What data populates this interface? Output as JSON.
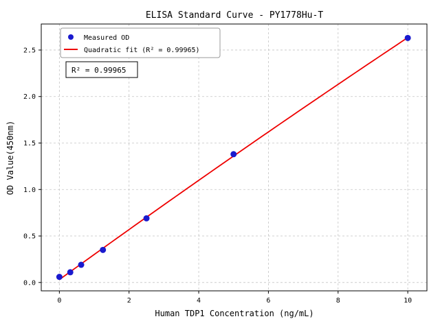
{
  "chart_data": {
    "type": "scatter",
    "title": "ELISA Standard Curve - PY1778Hu-T",
    "xlabel": "Human TDP1 Concentration (ng/mL)",
    "ylabel": "OD Value(450nm)",
    "xlim": [
      -0.52,
      10.55
    ],
    "ylim": [
      -0.09,
      2.78
    ],
    "x_ticks": [
      0,
      2,
      4,
      6,
      8,
      10
    ],
    "x_tick_labels": [
      "0",
      "2",
      "4",
      "6",
      "8",
      "10"
    ],
    "y_ticks": [
      0.0,
      0.5,
      1.0,
      1.5,
      2.0,
      2.5
    ],
    "y_tick_labels": [
      "0.0",
      "0.5",
      "1.0",
      "1.5",
      "2.0",
      "2.5"
    ],
    "grid": true,
    "legend_position": "upper-left",
    "points": {
      "x": [
        0,
        0.313,
        0.625,
        1.25,
        2.5,
        5,
        10
      ],
      "y": [
        0.06,
        0.11,
        0.19,
        0.35,
        0.69,
        1.38,
        2.63
      ]
    },
    "series": [
      {
        "name": "Measured OD",
        "type": "scatter",
        "color": "#1a1ace"
      },
      {
        "name": "Quadratic fit (R² = 0.99965)",
        "type": "line",
        "color": "#ee0000"
      }
    ],
    "annotation": "R² = 0.99965",
    "colors": {
      "grid": "#c4c4c4",
      "spine": "#000000",
      "legend_border": "#999999",
      "annotation_border": "#000000"
    }
  }
}
